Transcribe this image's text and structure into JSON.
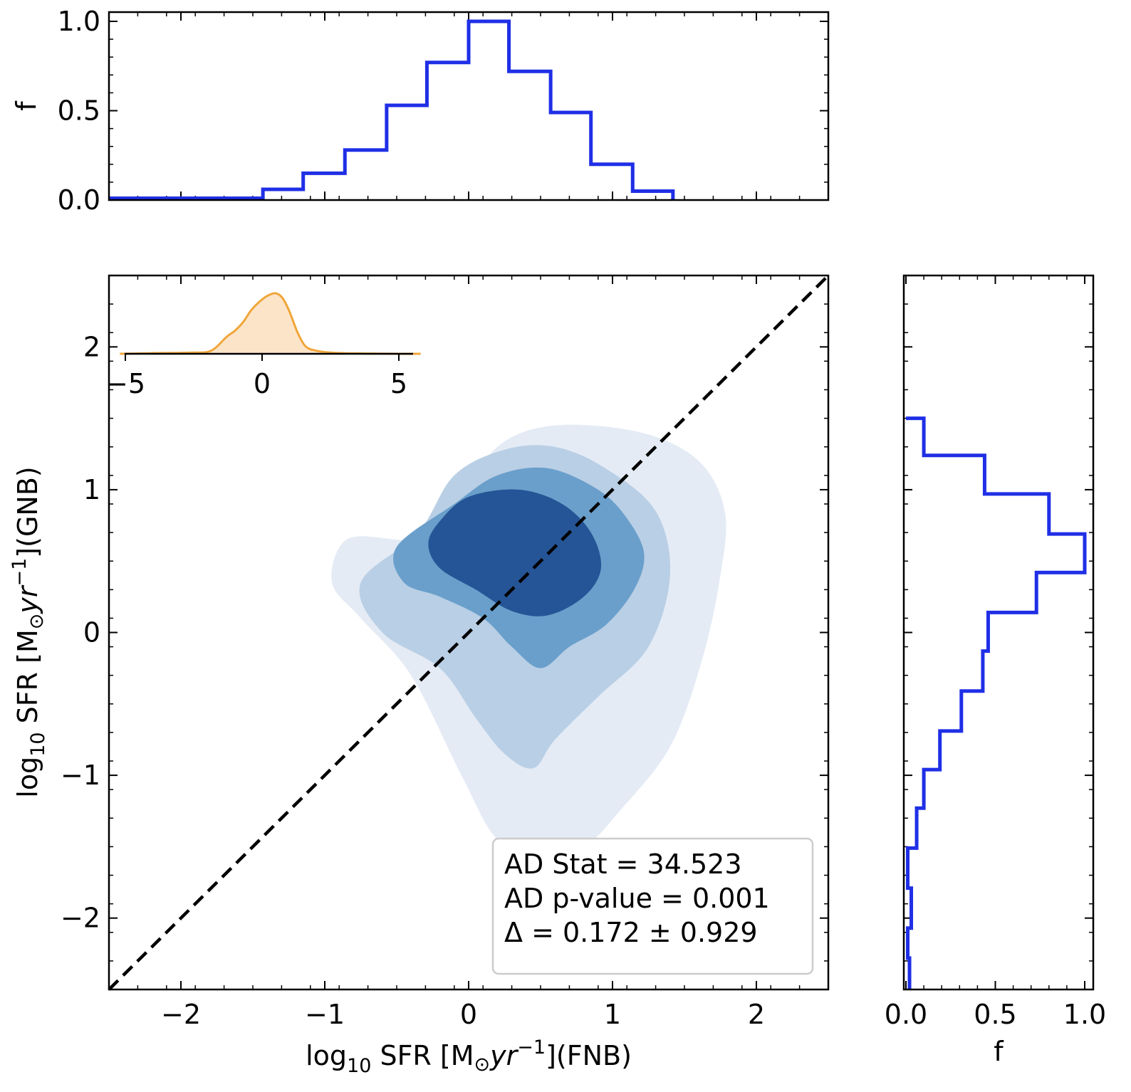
{
  "chart_data": [
    {
      "id": "main",
      "type": "contour",
      "xlabel": {
        "main": "log",
        "sub": "10",
        "mid": " SFR [M",
        "odot": "⊙",
        "yr": "yr",
        "sup": "−1",
        "tail": "](FNB)"
      },
      "ylabel": {
        "main": "log",
        "sub": "10",
        "mid": " SFR [M",
        "odot": "⊙",
        "yr": "yr",
        "sup": "−1",
        "tail": "](GNB)"
      },
      "xlim": [
        -2.5,
        2.5
      ],
      "ylim": [
        -2.5,
        2.5
      ],
      "xticks": [
        -2,
        -1,
        0,
        1,
        2
      ],
      "xtick_labels": [
        "−2",
        "−1",
        "0",
        "1",
        "2"
      ],
      "yticks": [
        -2,
        -1,
        0,
        1,
        2
      ],
      "ytick_labels": [
        "−2",
        "−1",
        "0",
        "1",
        "2"
      ],
      "identity_line": {
        "x": [
          -2.5,
          2.5
        ],
        "y": [
          -2.5,
          2.5
        ],
        "style": "dashed",
        "color": "#000000"
      },
      "density_levels": [
        {
          "level": 1,
          "color": "#e4ebf5",
          "outline": [
            [
              -0.15,
              0.6
            ],
            [
              -0.05,
              0.9
            ],
            [
              0.2,
              1.3
            ],
            [
              0.6,
              1.45
            ],
            [
              1.2,
              1.4
            ],
            [
              1.6,
              1.2
            ],
            [
              1.78,
              0.85
            ],
            [
              1.75,
              0.4
            ],
            [
              1.62,
              -0.2
            ],
            [
              1.4,
              -0.8
            ],
            [
              1.05,
              -1.25
            ],
            [
              0.8,
              -1.5
            ],
            [
              0.5,
              -1.55
            ],
            [
              0.2,
              -1.45
            ],
            [
              -0.05,
              -1.0
            ],
            [
              -0.4,
              -0.3
            ],
            [
              -0.75,
              0.1
            ],
            [
              -0.95,
              0.35
            ],
            [
              -0.85,
              0.65
            ],
            [
              -0.5,
              0.65
            ]
          ]
        },
        {
          "level": 2,
          "color": "#b9cfe5",
          "outline": [
            [
              -0.35,
              0.7
            ],
            [
              -0.1,
              1.1
            ],
            [
              0.25,
              1.28
            ],
            [
              0.6,
              1.3
            ],
            [
              0.95,
              1.15
            ],
            [
              1.3,
              0.85
            ],
            [
              1.4,
              0.4
            ],
            [
              1.25,
              -0.1
            ],
            [
              0.9,
              -0.45
            ],
            [
              0.6,
              -0.75
            ],
            [
              0.45,
              -0.95
            ],
            [
              0.25,
              -0.85
            ],
            [
              0.05,
              -0.6
            ],
            [
              -0.2,
              -0.25
            ],
            [
              -0.6,
              0.0
            ],
            [
              -0.75,
              0.35
            ]
          ]
        },
        {
          "level": 3,
          "color": "#6a9fcb",
          "outline": [
            [
              -0.1,
              0.9
            ],
            [
              0.2,
              1.1
            ],
            [
              0.55,
              1.15
            ],
            [
              0.9,
              1.0
            ],
            [
              1.1,
              0.8
            ],
            [
              1.22,
              0.55
            ],
            [
              1.15,
              0.3
            ],
            [
              0.95,
              0.05
            ],
            [
              0.7,
              -0.1
            ],
            [
              0.5,
              -0.25
            ],
            [
              0.3,
              -0.1
            ],
            [
              0.1,
              0.1
            ],
            [
              -0.2,
              0.25
            ],
            [
              -0.45,
              0.35
            ],
            [
              -0.5,
              0.6
            ]
          ]
        },
        {
          "level": 4,
          "color": "#255596",
          "outline": [
            [
              -0.2,
              0.78
            ],
            [
              0.0,
              0.95
            ],
            [
              0.35,
              1.0
            ],
            [
              0.65,
              0.9
            ],
            [
              0.85,
              0.7
            ],
            [
              0.92,
              0.45
            ],
            [
              0.8,
              0.25
            ],
            [
              0.55,
              0.12
            ],
            [
              0.3,
              0.15
            ],
            [
              0.05,
              0.3
            ],
            [
              -0.2,
              0.45
            ],
            [
              -0.28,
              0.62
            ]
          ]
        }
      ],
      "stats_box": {
        "lines": [
          "AD Stat = 34.523",
          "AD p-value = 0.001",
          "Δ = 0.172 ± 0.929"
        ],
        "placement": "lower-right"
      }
    },
    {
      "id": "top-histogram",
      "type": "step-histogram",
      "ylabel": "f",
      "xlim": [
        -2.5,
        2.5
      ],
      "ylim": [
        0,
        1.0
      ],
      "yticks": [
        0.0,
        0.5,
        1.0
      ],
      "ytick_labels": [
        "0.0",
        "0.5",
        "1.0"
      ],
      "color": "#1f2fe6",
      "bin_edges": [
        -2.5,
        -1.43,
        -1.15,
        -0.86,
        -0.57,
        -0.29,
        0.0,
        0.28,
        0.57,
        0.85,
        1.14,
        1.42
      ],
      "values": [
        0.01,
        0.06,
        0.15,
        0.28,
        0.53,
        0.77,
        1.0,
        0.72,
        0.49,
        0.2,
        0.05
      ]
    },
    {
      "id": "right-histogram",
      "type": "step-histogram",
      "orientation": "horizontal",
      "xlabel": "f",
      "xlim": [
        0,
        1.0
      ],
      "ylim": [
        -2.5,
        2.5
      ],
      "xticks": [
        0.0,
        0.5,
        1.0
      ],
      "xtick_labels": [
        "0.0",
        "0.5",
        "1.0"
      ],
      "color": "#1f2fe6",
      "bin_edges": [
        -2.5,
        -2.28,
        -2.07,
        -1.79,
        -1.51,
        -1.23,
        -0.96,
        -0.69,
        -0.41,
        -0.13,
        0.14,
        0.42,
        0.69,
        0.97,
        1.24,
        1.5
      ],
      "values": [
        0.02,
        0.01,
        0.03,
        0.01,
        0.06,
        0.1,
        0.19,
        0.31,
        0.43,
        0.46,
        0.73,
        1.0,
        0.8,
        0.44,
        0.1
      ]
    },
    {
      "id": "inset-kde",
      "type": "kde",
      "color": "#f0a63a",
      "fill": "#fce4c8",
      "xlim": [
        -5.2,
        5.8
      ],
      "xticks": [
        -5,
        0,
        5
      ],
      "xtick_labels": [
        "−5",
        "0",
        "5"
      ],
      "x": [
        -5.2,
        -4,
        -3,
        -2.5,
        -2,
        -1.7,
        -1.3,
        -1.0,
        -0.7,
        -0.4,
        -0.1,
        0.2,
        0.5,
        0.75,
        1.0,
        1.3,
        1.6,
        2.0,
        2.5,
        3,
        4,
        5,
        5.8
      ],
      "y": [
        0.0,
        0.01,
        0.015,
        0.02,
        0.03,
        0.1,
        0.28,
        0.38,
        0.52,
        0.72,
        0.86,
        0.96,
        1.0,
        0.92,
        0.7,
        0.35,
        0.12,
        0.05,
        0.02,
        0.01,
        0.005,
        0.0,
        0.0
      ]
    }
  ]
}
